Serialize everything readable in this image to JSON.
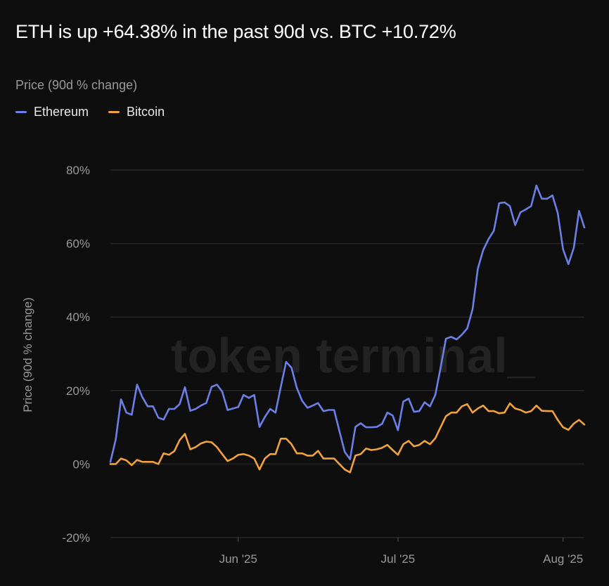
{
  "title": "ETH is up +64.38% in the past 90d vs. BTC +10.72%",
  "subtitle": "Price (90d % change)",
  "colors": {
    "background": "#0e0e0e",
    "ethereum": "#6b7fe6",
    "bitcoin": "#f0a23e",
    "grid": "#262626",
    "watermark": "#232323"
  },
  "watermark": "token terminal_",
  "chart_data": {
    "type": "line",
    "title": "ETH is up +64.38% in the past 90d vs. BTC +10.72%",
    "ylabel": "Price (90d % change)",
    "xlabel": "",
    "ylim": [
      -20,
      80
    ],
    "yticks": [
      -20,
      0,
      20,
      40,
      60,
      80
    ],
    "ytick_labels": [
      "-20%",
      "0%",
      "20%",
      "40%",
      "60%",
      "80%"
    ],
    "xticks": [
      "2025-06-01",
      "2025-07-01",
      "2025-08-01"
    ],
    "xtick_labels": [
      "Jun '25",
      "Jul '25",
      "Aug '25"
    ],
    "grid": "horizontal",
    "legend": "top-left",
    "x": [
      "2025-05-08",
      "2025-05-09",
      "2025-05-10",
      "2025-05-11",
      "2025-05-12",
      "2025-05-13",
      "2025-05-14",
      "2025-05-15",
      "2025-05-16",
      "2025-05-17",
      "2025-05-18",
      "2025-05-19",
      "2025-05-20",
      "2025-05-21",
      "2025-05-22",
      "2025-05-23",
      "2025-05-24",
      "2025-05-25",
      "2025-05-26",
      "2025-05-27",
      "2025-05-28",
      "2025-05-29",
      "2025-05-30",
      "2025-05-31",
      "2025-06-01",
      "2025-06-02",
      "2025-06-03",
      "2025-06-04",
      "2025-06-05",
      "2025-06-06",
      "2025-06-07",
      "2025-06-08",
      "2025-06-09",
      "2025-06-10",
      "2025-06-11",
      "2025-06-12",
      "2025-06-13",
      "2025-06-14",
      "2025-06-15",
      "2025-06-16",
      "2025-06-17",
      "2025-06-18",
      "2025-06-19",
      "2025-06-20",
      "2025-06-21",
      "2025-06-22",
      "2025-06-23",
      "2025-06-24",
      "2025-06-25",
      "2025-06-26",
      "2025-06-27",
      "2025-06-28",
      "2025-06-29",
      "2025-06-30",
      "2025-07-01",
      "2025-07-02",
      "2025-07-03",
      "2025-07-04",
      "2025-07-05",
      "2025-07-06",
      "2025-07-07",
      "2025-07-08",
      "2025-07-09",
      "2025-07-10",
      "2025-07-11",
      "2025-07-12",
      "2025-07-13",
      "2025-07-14",
      "2025-07-15",
      "2025-07-16",
      "2025-07-17",
      "2025-07-18",
      "2025-07-19",
      "2025-07-20",
      "2025-07-21",
      "2025-07-22",
      "2025-07-23",
      "2025-07-24",
      "2025-07-25",
      "2025-07-26",
      "2025-07-27",
      "2025-07-28",
      "2025-07-29",
      "2025-07-30",
      "2025-07-31",
      "2025-08-01",
      "2025-08-02",
      "2025-08-03",
      "2025-08-04",
      "2025-08-05"
    ],
    "series": [
      {
        "name": "Ethereum",
        "color": "#6b7fe6",
        "values": [
          0.6,
          6.7,
          17.6,
          14,
          13.4,
          21.6,
          18.2,
          15.7,
          15.7,
          12.6,
          12.1,
          15,
          15,
          16.3,
          20.9,
          14.5,
          15,
          15.9,
          16.6,
          21,
          21.6,
          19.7,
          14.7,
          15.1,
          15.5,
          18.8,
          18,
          18.8,
          10.1,
          12.8,
          15,
          14,
          21,
          27.8,
          26.2,
          20.7,
          17.2,
          15.3,
          15.9,
          16.6,
          14.4,
          14.7,
          14.7,
          9,
          3.3,
          1.3,
          10.1,
          11.1,
          10,
          10,
          10.1,
          10.9,
          14,
          13.2,
          9.2,
          17,
          17.8,
          14.2,
          14.4,
          16.8,
          15.7,
          18.8,
          26.2,
          34.1,
          34.6,
          33.9,
          35.2,
          36.9,
          42.1,
          53.2,
          58.2,
          61.2,
          63.5,
          71,
          71.2,
          70.2,
          65,
          68.5,
          69.3,
          70.2,
          75.8,
          72.2,
          72.2,
          73.1,
          68.3,
          58.4,
          54.4,
          58.8,
          68.9,
          64.38
        ]
      },
      {
        "name": "Bitcoin",
        "color": "#f0a23e",
        "values": [
          0,
          0,
          1.5,
          1,
          -0.3,
          1.1,
          0.6,
          0.6,
          0.6,
          0,
          2.9,
          2.5,
          3.5,
          6.5,
          8.2,
          4,
          4.6,
          5.6,
          6.1,
          5.9,
          4.6,
          2.7,
          0.8,
          1.5,
          2.5,
          2.7,
          2.3,
          1.5,
          -1.5,
          1.5,
          2.7,
          2.7,
          6.9,
          6.9,
          5.4,
          2.9,
          2.9,
          2.3,
          2.3,
          3.6,
          1.5,
          1.5,
          1.5,
          0,
          -1.5,
          -2.3,
          2.3,
          2.7,
          4.2,
          3.8,
          4,
          4.4,
          5.2,
          3.8,
          2.5,
          5.4,
          6.3,
          4.8,
          5.2,
          6.3,
          5.4,
          7,
          10,
          13,
          14,
          14,
          15.7,
          16.3,
          14,
          15.1,
          15.9,
          14.4,
          14.4,
          13.8,
          14,
          16.5,
          15.1,
          14.7,
          14,
          14.4,
          15.9,
          14.5,
          14.4,
          14.4,
          12,
          10,
          9.3,
          11,
          12,
          10.72
        ]
      }
    ]
  }
}
